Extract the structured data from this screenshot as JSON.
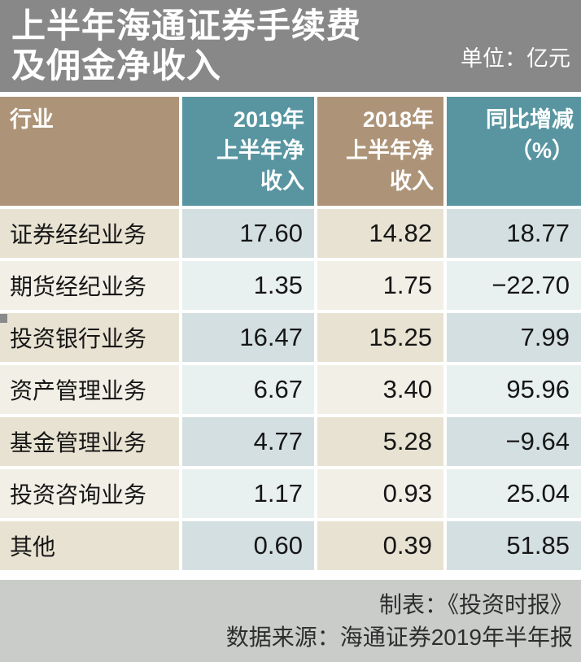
{
  "header": {
    "title": "上半年海通证券手续费\n及佣金净收入",
    "unit_label": "单位：亿元"
  },
  "table": {
    "columns": {
      "industry": "行业",
      "y2019": "2019年\n上半年净\n收入",
      "y2018": "2018年\n上半年净\n收入",
      "yoy": "同比增减\n（%）"
    },
    "rows": [
      {
        "industry": "证券经纪业务",
        "y2019": "17.60",
        "y2018": "14.82",
        "yoy": "18.77"
      },
      {
        "industry": "期货经纪业务",
        "y2019": "1.35",
        "y2018": "1.75",
        "yoy": "−22.70"
      },
      {
        "industry": "投资银行业务",
        "y2019": "16.47",
        "y2018": "15.25",
        "yoy": "7.99"
      },
      {
        "industry": "资产管理业务",
        "y2019": "6.67",
        "y2018": "3.40",
        "yoy": "95.96"
      },
      {
        "industry": "基金管理业务",
        "y2019": "4.77",
        "y2018": "5.28",
        "yoy": "−9.64"
      },
      {
        "industry": "投资咨询业务",
        "y2019": "1.17",
        "y2018": "0.93",
        "yoy": "25.04"
      },
      {
        "industry": "其他",
        "y2019": "0.60",
        "y2018": "0.39",
        "yoy": "51.85"
      }
    ]
  },
  "footer": {
    "credit": "制表：《投资时报》",
    "source": "数据来源：海通证券2019年半年报"
  },
  "colors": {
    "banner_bg": "#888888",
    "header_warm": "#AD9478",
    "header_cool": "#5895A0",
    "row_dark_warm": "#E8E2D2",
    "row_dark_cool": "#D4DFE1",
    "row_light_warm": "#F2EFE6",
    "row_light_cool": "#E9F0F0",
    "footer_bg": "#CACCCA",
    "header_text": "#FFFFFF",
    "body_text": "#161616"
  },
  "chart_data": {
    "type": "table",
    "title": "上半年海通证券手续费及佣金净收入",
    "unit": "亿元",
    "columns": [
      "行业",
      "2019年上半年净收入",
      "2018年上半年净收入",
      "同比增减（%）"
    ],
    "rows": [
      [
        "证券经纪业务",
        17.6,
        14.82,
        18.77
      ],
      [
        "期货经纪业务",
        1.35,
        1.75,
        -22.7
      ],
      [
        "投资银行业务",
        16.47,
        15.25,
        7.99
      ],
      [
        "资产管理业务",
        6.67,
        3.4,
        95.96
      ],
      [
        "基金管理业务",
        4.77,
        5.28,
        -9.64
      ],
      [
        "投资咨询业务",
        1.17,
        0.93,
        25.04
      ],
      [
        "其他",
        0.6,
        0.39,
        51.85
      ]
    ],
    "credit": "《投资时报》",
    "source": "海通证券2019年半年报"
  }
}
